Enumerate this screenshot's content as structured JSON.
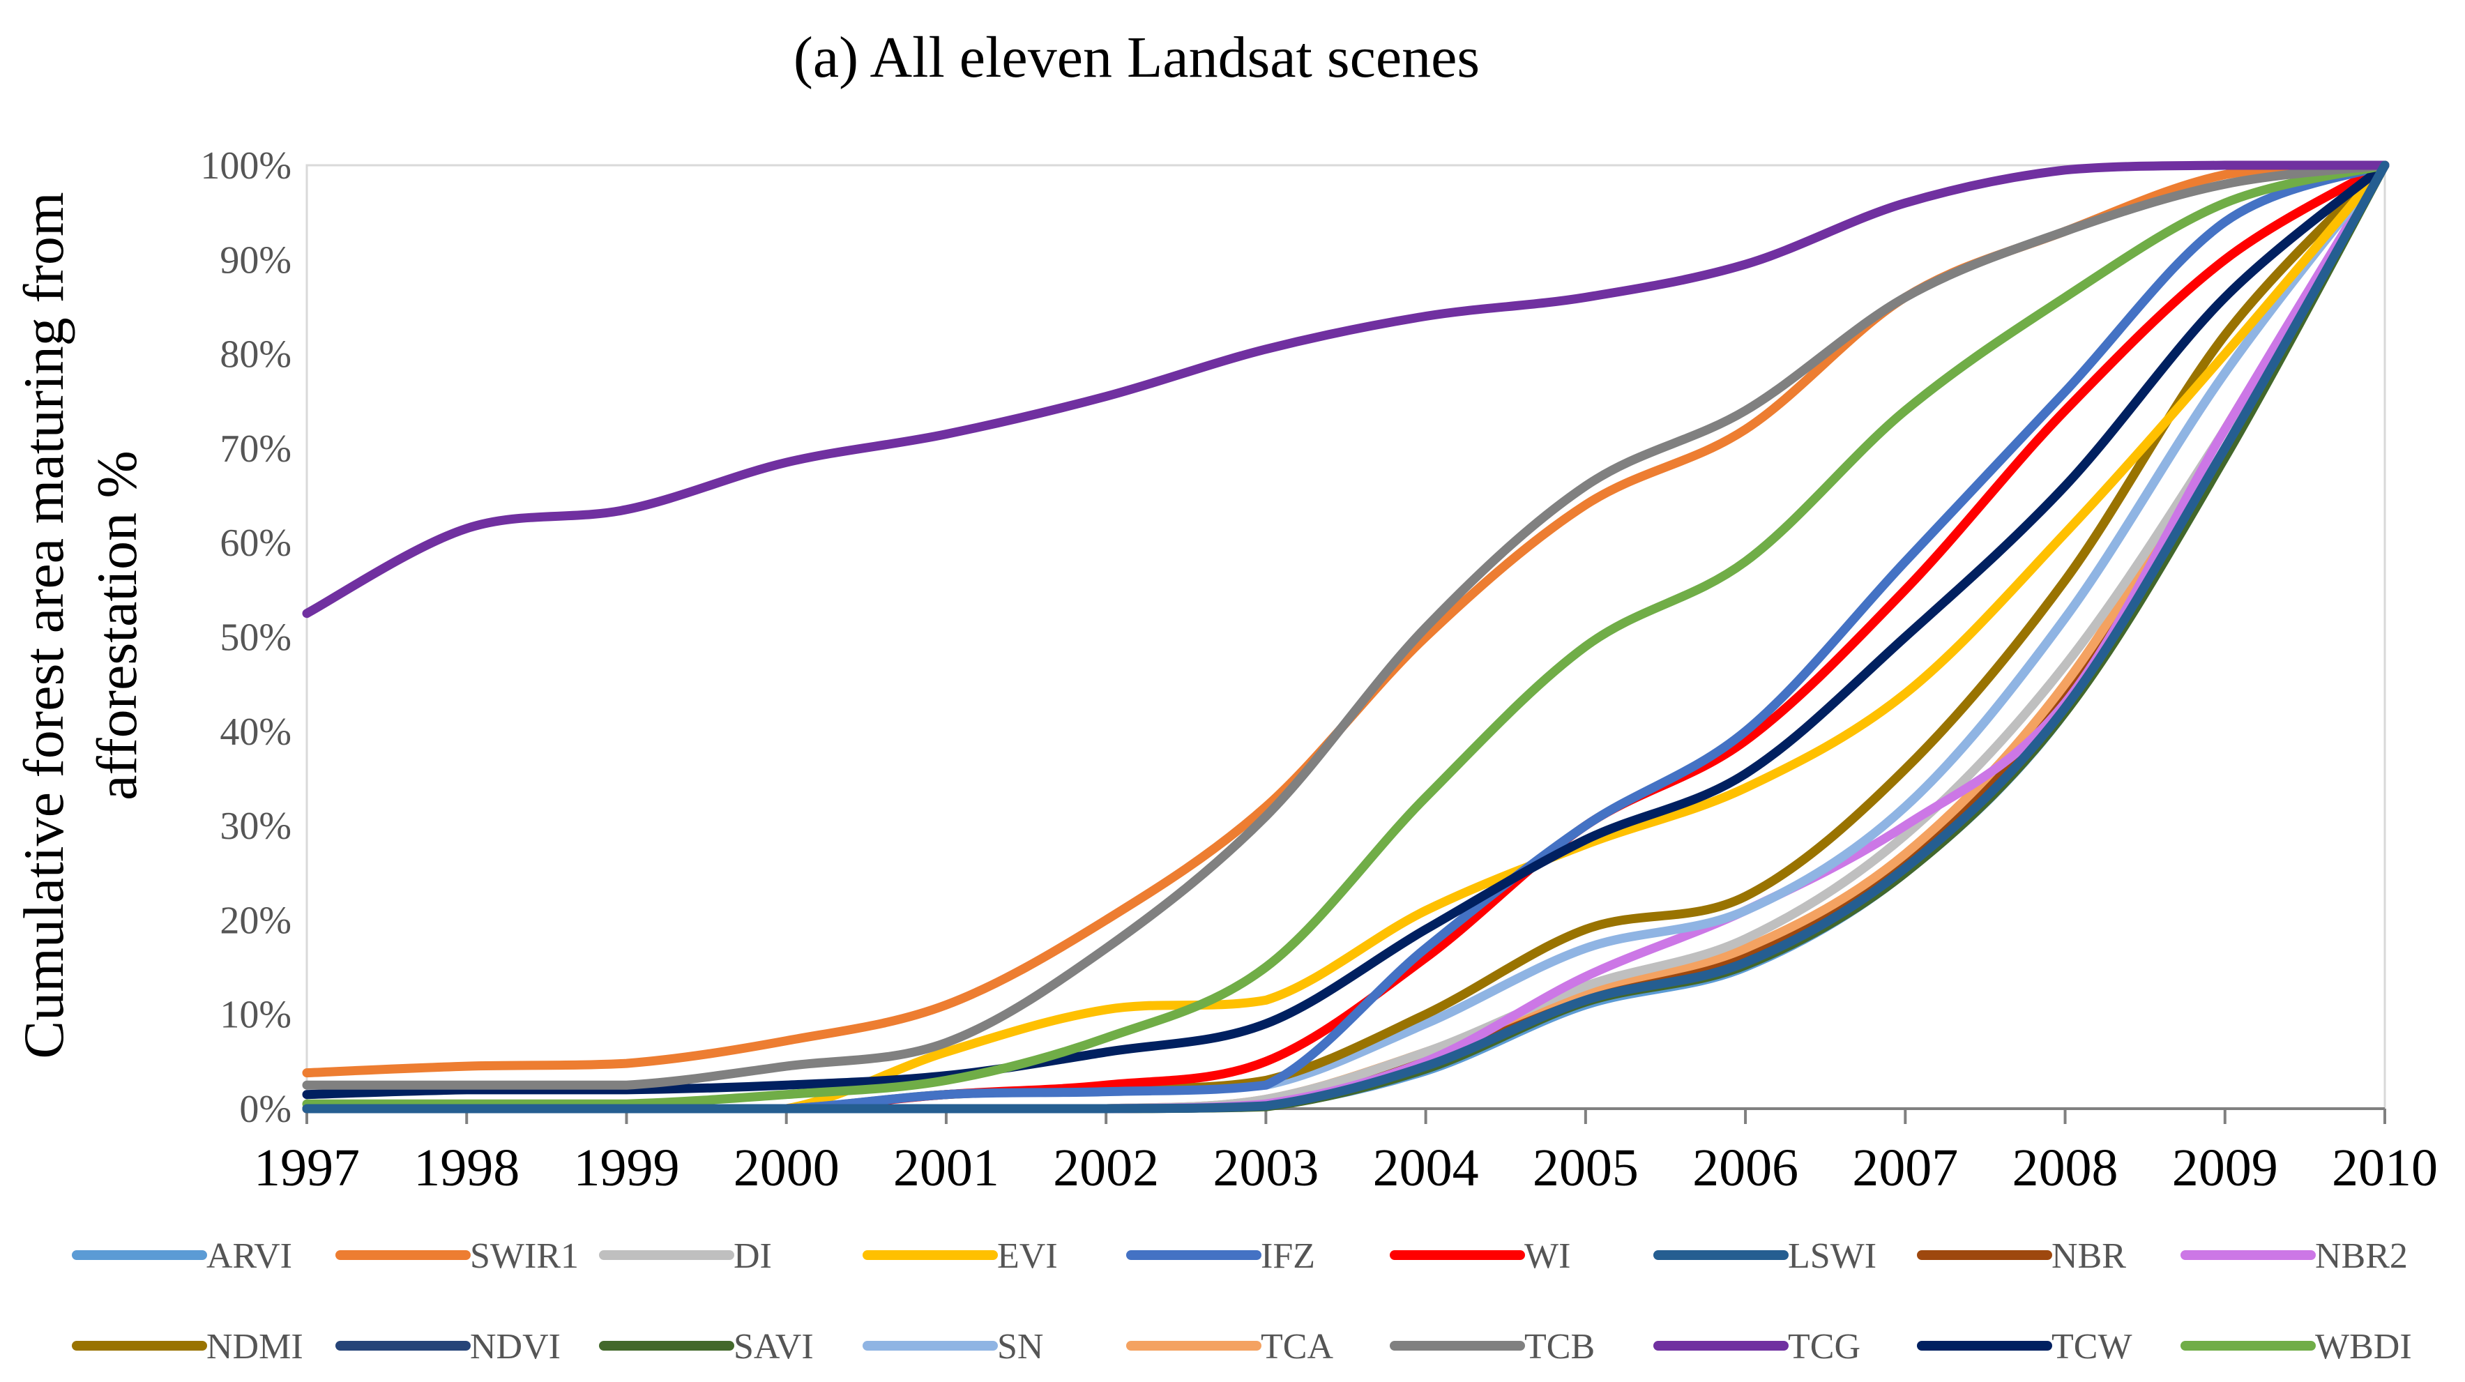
{
  "chart_data": {
    "type": "line",
    "title": "(a) All eleven Landsat scenes",
    "ylabel_lines": [
      "Cumulative forest area maturing from",
      "afforestation %"
    ],
    "xlabel": "",
    "x": [
      1997,
      1998,
      1999,
      2000,
      2001,
      2002,
      2003,
      2004,
      2005,
      2006,
      2007,
      2008,
      2009,
      2010
    ],
    "x_tick_labels": [
      "1997",
      "1998",
      "1999",
      "2000",
      "2001",
      "2002",
      "2003",
      "2004",
      "2005",
      "2006",
      "2007",
      "2008",
      "2009",
      "2010"
    ],
    "ylim": [
      0,
      100
    ],
    "y_tick_labels": [
      "0%",
      "10%",
      "20%",
      "30%",
      "40%",
      "50%",
      "60%",
      "70%",
      "80%",
      "90%",
      "100%"
    ],
    "grid": false,
    "legend_position": "bottom",
    "series": [
      {
        "name": "ARVI",
        "color": "#5B9BD5",
        "values": [
          0,
          0,
          0,
          0,
          0,
          0,
          0.3,
          4,
          11,
          15,
          25,
          42,
          70,
          100
        ]
      },
      {
        "name": "SWIR1",
        "color": "#ED7D31",
        "values": [
          3.8,
          4.5,
          4.8,
          7.2,
          11,
          20,
          32,
          50,
          64,
          72,
          86,
          93,
          99,
          100
        ]
      },
      {
        "name": "DI",
        "color": "#BFBFBF",
        "values": [
          0,
          0,
          0,
          0,
          0,
          0,
          1,
          6,
          13,
          18,
          29,
          47,
          72,
          100
        ]
      },
      {
        "name": "EVI",
        "color": "#FFC000",
        "values": [
          0,
          0,
          0,
          0,
          6,
          10.5,
          11.5,
          21,
          28,
          34,
          44,
          61,
          80,
          100
        ]
      },
      {
        "name": "IFZ",
        "color": "#4472C4",
        "values": [
          0,
          0,
          0,
          0,
          1.5,
          1.8,
          2.5,
          17,
          30,
          40,
          58,
          76,
          94,
          100
        ]
      },
      {
        "name": "WI",
        "color": "#FF0000",
        "values": [
          0,
          0,
          0,
          0,
          1.5,
          2.5,
          5,
          16,
          30,
          39,
          55,
          74,
          90,
          100
        ]
      },
      {
        "name": "LSWI",
        "color": "#255E91",
        "values": [
          0,
          0,
          0,
          0,
          0,
          0,
          0.3,
          4.5,
          11.5,
          15.5,
          25.5,
          42.5,
          70,
          100
        ]
      },
      {
        "name": "NBR",
        "color": "#9E480E",
        "values": [
          0,
          0,
          0,
          0,
          0,
          0,
          0.5,
          5,
          12,
          16,
          26,
          44,
          72,
          100
        ]
      },
      {
        "name": "NBR2",
        "color": "#CC77E6",
        "values": [
          0,
          0,
          0,
          0,
          0,
          0,
          0.5,
          5,
          14,
          21,
          30,
          43,
          72,
          100
        ]
      },
      {
        "name": "NDMI",
        "color": "#997300",
        "values": [
          0,
          0,
          0,
          0,
          1.5,
          2,
          3,
          10,
          19,
          22.5,
          36,
          56,
          82,
          100
        ]
      },
      {
        "name": "NDVI",
        "color": "#264478",
        "values": [
          0,
          0,
          0,
          0,
          0,
          0,
          0.3,
          4.5,
          11.5,
          15.5,
          25.5,
          42.5,
          70,
          100
        ]
      },
      {
        "name": "SAVI",
        "color": "#43682B",
        "values": [
          0,
          0,
          0,
          0,
          0,
          0,
          0.2,
          4.2,
          11.3,
          15.2,
          25,
          42,
          69,
          100
        ]
      },
      {
        "name": "SN",
        "color": "#8FB4E3",
        "values": [
          0,
          0,
          0,
          0,
          1.5,
          2,
          2.5,
          9,
          17,
          21,
          32,
          52,
          78,
          100
        ]
      },
      {
        "name": "TCA",
        "color": "#F4A261",
        "values": [
          0,
          0,
          0,
          0,
          0,
          0,
          1,
          6,
          12.5,
          17,
          27,
          45,
          72,
          100
        ]
      },
      {
        "name": "TCB",
        "color": "#808080",
        "values": [
          2.5,
          2.5,
          2.5,
          4.5,
          7,
          17,
          31,
          51,
          66,
          74,
          86,
          93,
          98,
          100
        ]
      },
      {
        "name": "TCG",
        "color": "#7030A0",
        "values": [
          52.5,
          61.5,
          63.5,
          68.5,
          71.5,
          75.5,
          80.5,
          84,
          86,
          89.5,
          96,
          99.5,
          100,
          100
        ]
      },
      {
        "name": "TCW",
        "color": "#002060",
        "values": [
          1.5,
          2,
          2,
          2.5,
          3.5,
          6,
          9,
          19,
          28.5,
          35.5,
          50,
          66,
          86,
          100
        ]
      },
      {
        "name": "WBDI",
        "color": "#70AD47",
        "values": [
          0.5,
          0.5,
          0.5,
          1.5,
          3,
          7.5,
          15,
          33,
          49,
          58,
          74,
          86,
          96,
          100
        ]
      }
    ]
  }
}
